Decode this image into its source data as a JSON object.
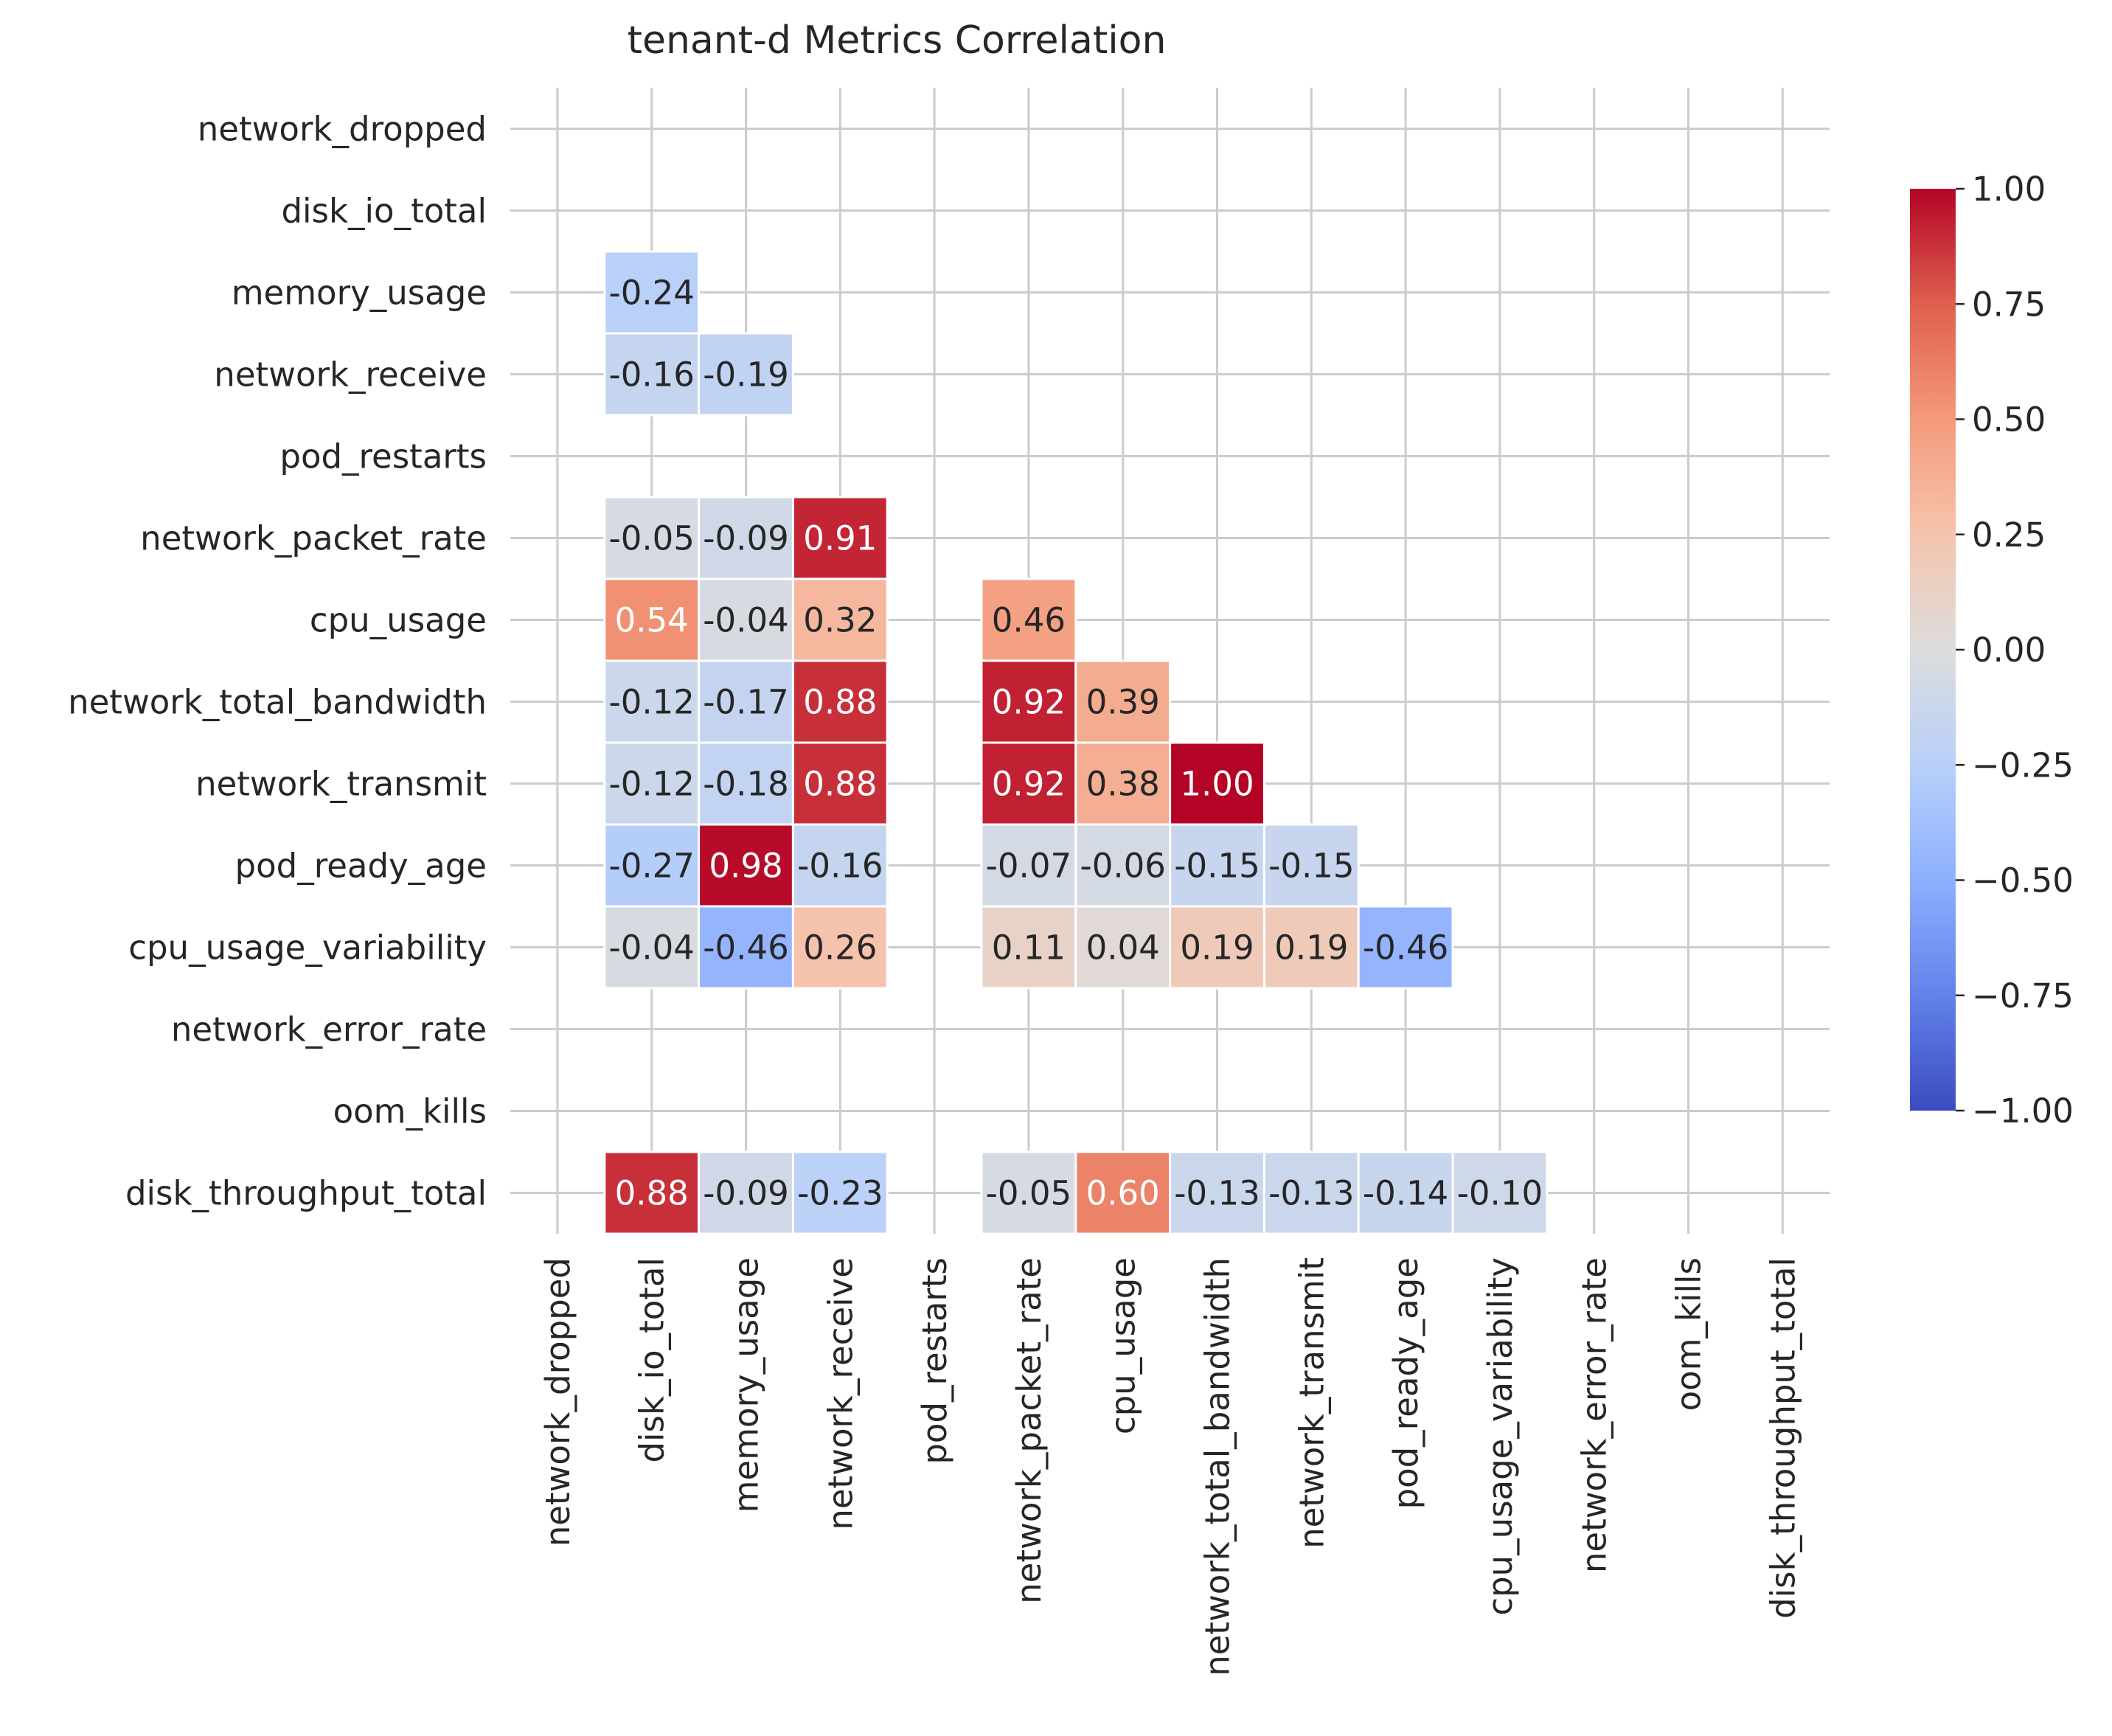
{
  "chart_data": {
    "type": "heatmap",
    "title": "tenant-d Metrics Correlation",
    "xlabel": "",
    "ylabel": "",
    "labels": [
      "network_dropped",
      "disk_io_total",
      "memory_usage",
      "network_receive",
      "pod_restarts",
      "network_packet_rate",
      "cpu_usage",
      "network_total_bandwidth",
      "network_transmit",
      "pod_ready_age",
      "cpu_usage_variability",
      "network_error_rate",
      "oom_kills",
      "disk_throughput_total"
    ],
    "mask": "upper-triangle-and-diagonal",
    "vmin": -1,
    "vmax": 1,
    "colormap": "coolwarm",
    "colors": {
      "low": "#3b4cc0",
      "mid": "#dddddd",
      "high": "#b40426",
      "grid": "#cccccc",
      "cell_border": "#ffffff"
    },
    "grid": true,
    "colorbar": {
      "ticks": [
        "1.00",
        "0.75",
        "0.50",
        "0.25",
        "0.00",
        "−0.25",
        "−0.50",
        "−0.75",
        "−1.00"
      ],
      "tick_values": [
        1,
        0.75,
        0.5,
        0.25,
        0,
        -0.25,
        -0.5,
        -0.75,
        -1
      ],
      "position": "right"
    },
    "cells": [
      {
        "row": 2,
        "col": 1,
        "value": -0.24,
        "label": "-0.24"
      },
      {
        "row": 3,
        "col": 1,
        "value": -0.16,
        "label": "-0.16"
      },
      {
        "row": 3,
        "col": 2,
        "value": -0.19,
        "label": "-0.19"
      },
      {
        "row": 5,
        "col": 1,
        "value": -0.05,
        "label": "-0.05"
      },
      {
        "row": 5,
        "col": 2,
        "value": -0.09,
        "label": "-0.09"
      },
      {
        "row": 5,
        "col": 3,
        "value": 0.91,
        "label": "0.91"
      },
      {
        "row": 6,
        "col": 1,
        "value": 0.54,
        "label": "0.54"
      },
      {
        "row": 6,
        "col": 2,
        "value": -0.04,
        "label": "-0.04"
      },
      {
        "row": 6,
        "col": 3,
        "value": 0.32,
        "label": "0.32"
      },
      {
        "row": 6,
        "col": 5,
        "value": 0.46,
        "label": "0.46"
      },
      {
        "row": 7,
        "col": 1,
        "value": -0.12,
        "label": "-0.12"
      },
      {
        "row": 7,
        "col": 2,
        "value": -0.17,
        "label": "-0.17"
      },
      {
        "row": 7,
        "col": 3,
        "value": 0.88,
        "label": "0.88"
      },
      {
        "row": 7,
        "col": 5,
        "value": 0.92,
        "label": "0.92"
      },
      {
        "row": 7,
        "col": 6,
        "value": 0.39,
        "label": "0.39"
      },
      {
        "row": 8,
        "col": 1,
        "value": -0.12,
        "label": "-0.12"
      },
      {
        "row": 8,
        "col": 2,
        "value": -0.18,
        "label": "-0.18"
      },
      {
        "row": 8,
        "col": 3,
        "value": 0.88,
        "label": "0.88"
      },
      {
        "row": 8,
        "col": 5,
        "value": 0.92,
        "label": "0.92"
      },
      {
        "row": 8,
        "col": 6,
        "value": 0.38,
        "label": "0.38"
      },
      {
        "row": 8,
        "col": 7,
        "value": 1.0,
        "label": "1.00"
      },
      {
        "row": 9,
        "col": 1,
        "value": -0.27,
        "label": "-0.27"
      },
      {
        "row": 9,
        "col": 2,
        "value": 0.98,
        "label": "0.98"
      },
      {
        "row": 9,
        "col": 3,
        "value": -0.16,
        "label": "-0.16"
      },
      {
        "row": 9,
        "col": 5,
        "value": -0.07,
        "label": "-0.07"
      },
      {
        "row": 9,
        "col": 6,
        "value": -0.06,
        "label": "-0.06"
      },
      {
        "row": 9,
        "col": 7,
        "value": -0.15,
        "label": "-0.15"
      },
      {
        "row": 9,
        "col": 8,
        "value": -0.15,
        "label": "-0.15"
      },
      {
        "row": 10,
        "col": 1,
        "value": -0.04,
        "label": "-0.04"
      },
      {
        "row": 10,
        "col": 2,
        "value": -0.46,
        "label": "-0.46"
      },
      {
        "row": 10,
        "col": 3,
        "value": 0.26,
        "label": "0.26"
      },
      {
        "row": 10,
        "col": 5,
        "value": 0.11,
        "label": "0.11"
      },
      {
        "row": 10,
        "col": 6,
        "value": 0.04,
        "label": "0.04"
      },
      {
        "row": 10,
        "col": 7,
        "value": 0.19,
        "label": "0.19"
      },
      {
        "row": 10,
        "col": 8,
        "value": 0.19,
        "label": "0.19"
      },
      {
        "row": 10,
        "col": 9,
        "value": -0.46,
        "label": "-0.46"
      },
      {
        "row": 13,
        "col": 1,
        "value": 0.88,
        "label": "0.88"
      },
      {
        "row": 13,
        "col": 2,
        "value": -0.09,
        "label": "-0.09"
      },
      {
        "row": 13,
        "col": 3,
        "value": -0.23,
        "label": "-0.23"
      },
      {
        "row": 13,
        "col": 5,
        "value": -0.05,
        "label": "-0.05"
      },
      {
        "row": 13,
        "col": 6,
        "value": 0.6,
        "label": "0.60"
      },
      {
        "row": 13,
        "col": 7,
        "value": -0.13,
        "label": "-0.13"
      },
      {
        "row": 13,
        "col": 8,
        "value": -0.13,
        "label": "-0.13"
      },
      {
        "row": 13,
        "col": 9,
        "value": -0.14,
        "label": "-0.14"
      },
      {
        "row": 13,
        "col": 10,
        "value": -0.1,
        "label": "-0.10"
      }
    ]
  }
}
